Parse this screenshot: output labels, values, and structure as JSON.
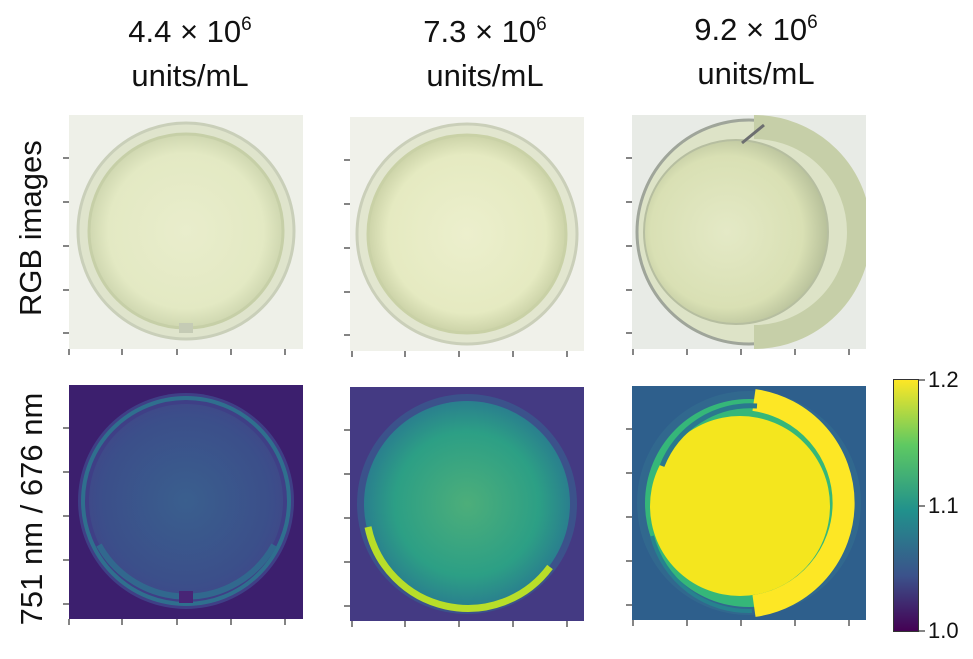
{
  "columns": [
    {
      "value": "4.4 × 10",
      "exp": "6",
      "unit": "units/mL"
    },
    {
      "value": "7.3 × 10",
      "exp": "6",
      "unit": "units/mL"
    },
    {
      "value": "9.2 × 10",
      "exp": "6",
      "unit": "units/mL"
    }
  ],
  "rows": {
    "rgb_label": "RGB images",
    "ratio_label": "751 nm / 676 nm"
  },
  "colorbar": {
    "colormap": "viridis",
    "ticks": [
      "1.2",
      "1.1",
      "1.0"
    ]
  },
  "colors": {
    "dish_medium": "#e6ecc8",
    "dish_rim": "#cfd7b8",
    "background": "#ffffff"
  }
}
